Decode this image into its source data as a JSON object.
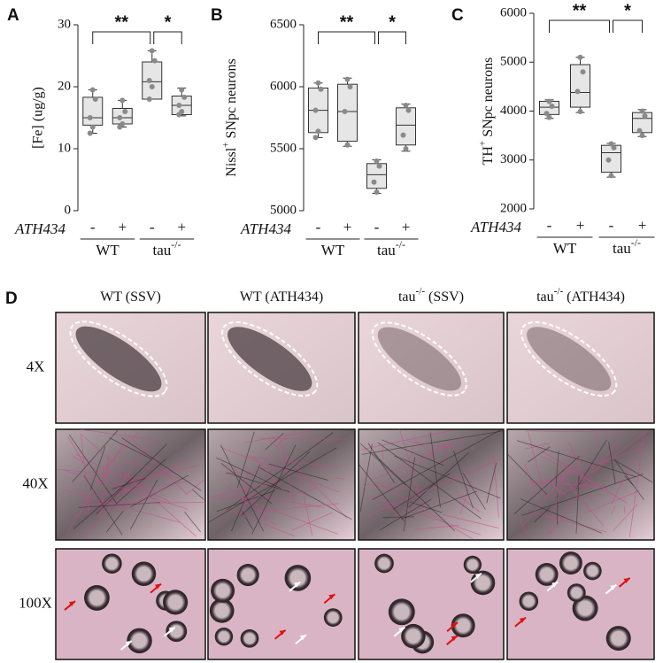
{
  "chart_data": [
    {
      "type": "box",
      "panel": "A",
      "ylabel": "[Fe] (ug/g)",
      "ylim": [
        0,
        30
      ],
      "yticks": [
        0,
        10,
        20,
        30
      ],
      "categories": [
        "-",
        "+",
        "-",
        "+"
      ],
      "group_var": "ATH434",
      "groups": [
        {
          "text": "WT"
        },
        {
          "text": "tau",
          "sup": "-/-"
        }
      ],
      "significance": [
        "**",
        "*"
      ],
      "boxes": [
        {
          "whislo": 12.5,
          "q1": 13.8,
          "med": 15,
          "q3": 18.3,
          "whishi": 19.5,
          "points": [
            19.5,
            18,
            15,
            13.5,
            12.5
          ]
        },
        {
          "whislo": 13.5,
          "q1": 14,
          "med": 15,
          "q3": 16.5,
          "whishi": 17.8,
          "points": [
            17.8,
            16,
            15,
            14,
            13.5
          ]
        },
        {
          "whislo": 18,
          "q1": 18,
          "med": 20.8,
          "q3": 24,
          "whishi": 25.8,
          "points": [
            25.8,
            24.2,
            21,
            20,
            18
          ]
        },
        {
          "whislo": 15.3,
          "q1": 15.5,
          "med": 17,
          "q3": 18.5,
          "whishi": 19.8,
          "points": [
            19.5,
            18.3,
            17,
            16,
            15.5
          ]
        }
      ]
    },
    {
      "type": "box",
      "panel": "B",
      "ylabel": {
        "text": "Nissl",
        "sup": "+",
        "rest": " SNpc neurons"
      },
      "ylim": [
        5000,
        6500
      ],
      "yticks": [
        5000,
        5500,
        6000,
        6500
      ],
      "categories": [
        "-",
        "+",
        "-",
        "+"
      ],
      "group_var": "ATH434",
      "groups": [
        {
          "text": "WT"
        },
        {
          "text": "tau",
          "sup": "-/-"
        }
      ],
      "significance": [
        "**",
        "*"
      ],
      "boxes": [
        {
          "whislo": 5590,
          "q1": 5630,
          "med": 5810,
          "q3": 5990,
          "whishi": 6030,
          "points": [
            6030,
            5980,
            5810,
            5640,
            5590
          ]
        },
        {
          "whislo": 5520,
          "q1": 5560,
          "med": 5800,
          "q3": 6020,
          "whishi": 6070,
          "points": [
            6060,
            6000,
            5800,
            5530
          ]
        },
        {
          "whislo": 5140,
          "q1": 5180,
          "med": 5290,
          "q3": 5380,
          "whishi": 5410,
          "points": [
            5400,
            5360,
            5230,
            5150
          ]
        },
        {
          "whislo": 5480,
          "q1": 5530,
          "med": 5690,
          "q3": 5830,
          "whishi": 5860,
          "points": [
            5850,
            5810,
            5610,
            5500
          ]
        }
      ]
    },
    {
      "type": "box",
      "panel": "C",
      "ylabel": {
        "text": "TH",
        "sup": "+",
        "rest": " SNpc neurons"
      },
      "ylim": [
        2000,
        6000
      ],
      "yticks": [
        2000,
        3000,
        4000,
        5000,
        6000
      ],
      "categories": [
        "-",
        "+",
        "-",
        "+"
      ],
      "group_var": "ATH434",
      "groups": [
        {
          "text": "WT"
        },
        {
          "text": "tau",
          "sup": "-/-"
        }
      ],
      "significance": [
        "**",
        "*"
      ],
      "boxes": [
        {
          "whislo": 3850,
          "q1": 3930,
          "med": 4080,
          "q3": 4200,
          "whishi": 4230,
          "points": [
            4200,
            4100,
            3950,
            3870
          ]
        },
        {
          "whislo": 3970,
          "q1": 4080,
          "med": 4380,
          "q3": 4950,
          "whishi": 5100,
          "points": [
            5100,
            4800,
            4400,
            3990
          ]
        },
        {
          "whislo": 2650,
          "q1": 2750,
          "med": 3150,
          "q3": 3300,
          "whishi": 3340,
          "points": [
            3330,
            3250,
            3000,
            2680
          ]
        },
        {
          "whislo": 3480,
          "q1": 3560,
          "med": 3850,
          "q3": 3970,
          "whishi": 4030,
          "points": [
            4000,
            3900,
            3600,
            3500
          ]
        }
      ]
    }
  ],
  "panel_d": {
    "label": "D",
    "columns": [
      {
        "text": "WT (SSV)"
      },
      {
        "text": "WT (ATH434)"
      },
      {
        "text": "tau",
        "sup": "-/-",
        "rest": " (SSV)"
      },
      {
        "text": "tau",
        "sup": "-/-",
        "rest": " (ATH434)"
      }
    ],
    "rows": [
      "4X",
      "40X",
      "100X"
    ]
  }
}
